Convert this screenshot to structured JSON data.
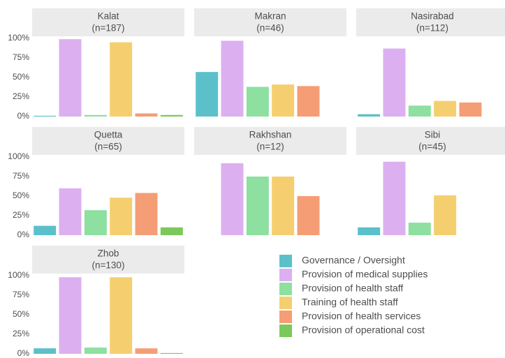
{
  "legend": {
    "items": [
      {
        "name": "Governance / Oversight",
        "color": "#5bc0c9"
      },
      {
        "name": "Provision of medical supplies",
        "color": "#dcb0f0"
      },
      {
        "name": "Provision of health staff",
        "color": "#8de0a0"
      },
      {
        "name": "Training of health staff",
        "color": "#f5cf6f"
      },
      {
        "name": "Provision of health services",
        "color": "#f59e75"
      },
      {
        "name": "Provision of operational cost",
        "color": "#7bc95a"
      }
    ]
  },
  "chart_data": [
    {
      "type": "bar",
      "title": "Kalat",
      "subtitle": "(n=187)",
      "values": [
        1,
        99,
        2,
        95,
        4,
        2
      ],
      "ylim": [
        0,
        100
      ],
      "yticks": [
        {
          "value": 0,
          "label": "0%"
        },
        {
          "value": 25,
          "label": "25%"
        },
        {
          "value": 50,
          "label": "50%"
        },
        {
          "value": 75,
          "label": "75%"
        },
        {
          "value": 100,
          "label": "100%"
        }
      ]
    },
    {
      "type": "bar",
      "title": "Makran",
      "subtitle": "(n=46)",
      "values": [
        57,
        97,
        38,
        41,
        39,
        null
      ],
      "ylim": [
        0,
        100
      ]
    },
    {
      "type": "bar",
      "title": "Nasirabad",
      "subtitle": "(n=112)",
      "values": [
        3,
        87,
        14,
        20,
        18,
        null
      ],
      "ylim": [
        0,
        100
      ]
    },
    {
      "type": "bar",
      "title": "Quetta",
      "subtitle": "(n=65)",
      "values": [
        12,
        60,
        32,
        48,
        54,
        10
      ],
      "ylim": [
        0,
        100
      ],
      "yticks": [
        {
          "value": 0,
          "label": "0%"
        },
        {
          "value": 25,
          "label": "25%"
        },
        {
          "value": 50,
          "label": "50%"
        },
        {
          "value": 75,
          "label": "75%"
        },
        {
          "value": 100,
          "label": "100%"
        }
      ]
    },
    {
      "type": "bar",
      "title": "Rakhshan",
      "subtitle": "(n=12)",
      "values": [
        null,
        92,
        75,
        75,
        50,
        null
      ],
      "ylim": [
        0,
        100
      ]
    },
    {
      "type": "bar",
      "title": "Sibi",
      "subtitle": "(n=45)",
      "values": [
        10,
        94,
        16,
        51,
        null,
        null
      ],
      "ylim": [
        0,
        100
      ]
    },
    {
      "type": "bar",
      "title": "Zhob",
      "subtitle": "(n=130)",
      "values": [
        7,
        98,
        8,
        98,
        7,
        1
      ],
      "ylim": [
        0,
        100
      ],
      "yticks": [
        {
          "value": 0,
          "label": "0%"
        },
        {
          "value": 25,
          "label": "25%"
        },
        {
          "value": 50,
          "label": "50%"
        },
        {
          "value": 75,
          "label": "75%"
        },
        {
          "value": 100,
          "label": "100%"
        }
      ]
    }
  ]
}
